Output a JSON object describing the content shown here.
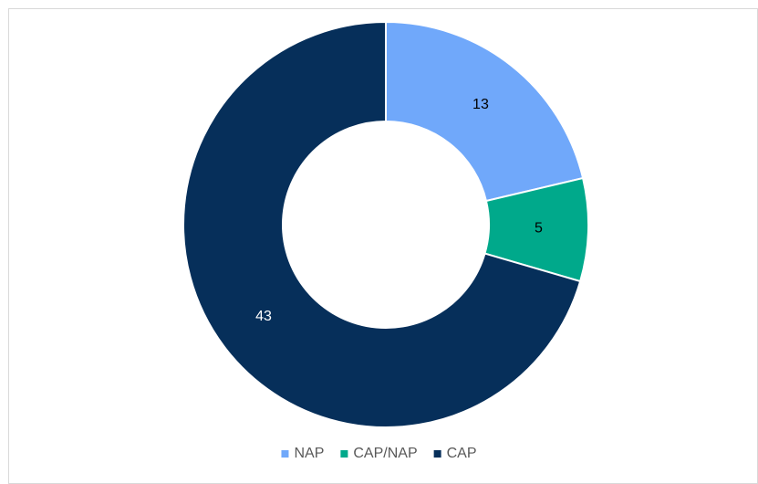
{
  "chart_data": {
    "type": "donut",
    "categories": [
      "NAP",
      "CAP/NAP",
      "CAP"
    ],
    "values": [
      13,
      5,
      43
    ],
    "colors": [
      "#70a8fa",
      "#00a98b",
      "#062f5a"
    ],
    "label_colors": [
      "#000000",
      "#000000",
      "#ffffff"
    ],
    "legend": "bottom"
  }
}
